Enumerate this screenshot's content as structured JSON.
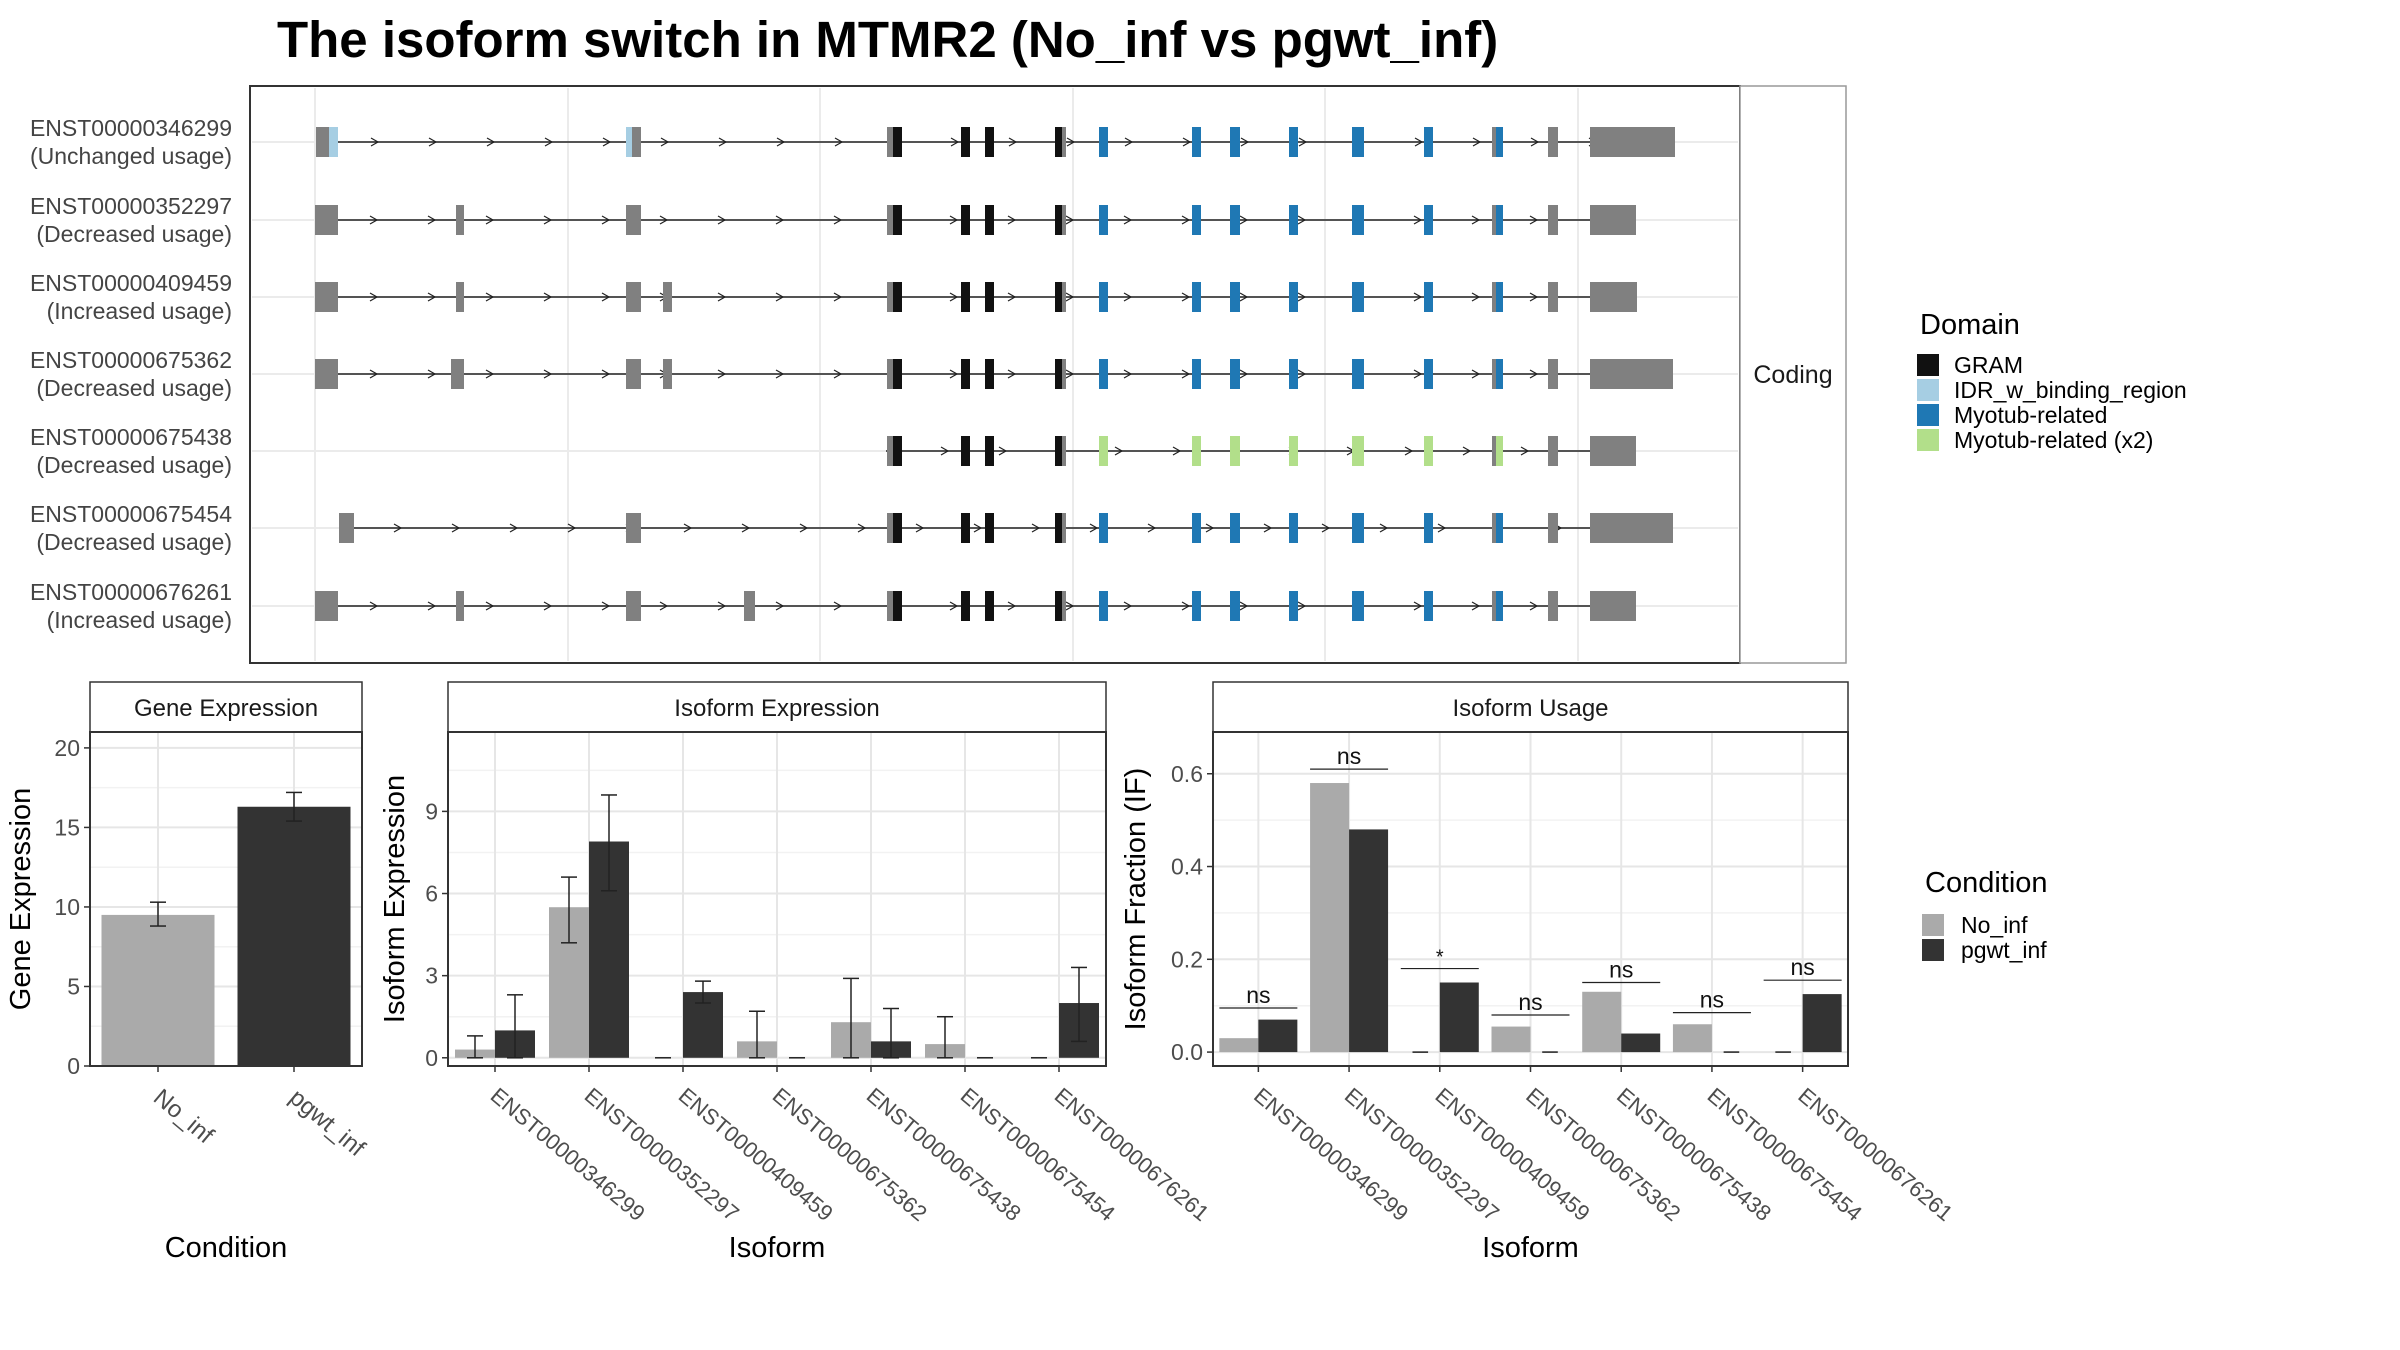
{
  "title": "The isoform switch in MTMR2 (No_inf vs pgwt_inf)",
  "colors": {
    "gram": "#111111",
    "idr": "#a6cee3",
    "myotub": "#1f78b4",
    "myotub_x2": "#b2df8a",
    "noncoding": "#808080",
    "no_inf": "#aaaaaa",
    "pgwt_inf": "#333333"
  },
  "legend_domain": {
    "title": "Domain",
    "items": [
      {
        "label": "GRAM",
        "color": "#111111"
      },
      {
        "label": "IDR_w_binding_region",
        "color": "#a6cee3"
      },
      {
        "label": "Myotub-related",
        "color": "#1f78b4"
      },
      {
        "label": "Myotub-related (x2)",
        "color": "#b2df8a"
      }
    ]
  },
  "legend_condition": {
    "title": "Condition",
    "items": [
      {
        "label": "No_inf",
        "color": "#aaaaaa"
      },
      {
        "label": "pgwt_inf",
        "color": "#333333"
      }
    ]
  },
  "chart_data": [
    {
      "type": "gene-structure",
      "strip_label": "Coding",
      "transcripts": [
        {
          "id": "ENST00000346299",
          "usage": "(Unchanged usage)"
        },
        {
          "id": "ENST00000352297",
          "usage": "(Decreased usage)"
        },
        {
          "id": "ENST00000409459",
          "usage": "(Increased usage)"
        },
        {
          "id": "ENST00000675362",
          "usage": "(Decreased usage)"
        },
        {
          "id": "ENST00000675438",
          "usage": "(Decreased usage)"
        },
        {
          "id": "ENST00000675454",
          "usage": "(Decreased usage)"
        },
        {
          "id": "ENST00000676261",
          "usage": "(Increased usage)"
        }
      ]
    },
    {
      "type": "bar",
      "panel_title": "Gene Expression",
      "xlabel": "Condition",
      "ylabel": "Gene Expression",
      "categories": [
        "No_inf",
        "pgwt_inf"
      ],
      "values": [
        9.5,
        16.3
      ],
      "errors": [
        [
          8.8,
          10.3
        ],
        [
          15.4,
          17.2
        ]
      ],
      "ylim": [
        0,
        21
      ],
      "yticks": [
        "0",
        "5",
        "10",
        "15",
        "20"
      ]
    },
    {
      "type": "bar",
      "panel_title": "Isoform Expression",
      "xlabel": "Isoform",
      "ylabel": "Isoform Expression",
      "categories": [
        "ENST00000346299",
        "ENST00000352297",
        "ENST00000409459",
        "ENST00000675362",
        "ENST00000675438",
        "ENST00000675454",
        "ENST00000676261"
      ],
      "series": [
        {
          "name": "No_inf",
          "values": [
            0.3,
            5.5,
            0.0,
            0.6,
            1.3,
            0.5,
            0.0
          ],
          "errors": [
            [
              0.0,
              0.8
            ],
            [
              4.2,
              6.6
            ],
            null,
            [
              0.0,
              1.7
            ],
            [
              0.0,
              2.9
            ],
            [
              0.0,
              1.5
            ],
            null
          ]
        },
        {
          "name": "pgwt_inf",
          "values": [
            1.0,
            7.9,
            2.4,
            0.0,
            0.6,
            0.0,
            2.0
          ],
          "errors": [
            [
              0.0,
              2.3
            ],
            [
              6.1,
              9.6
            ],
            [
              2.0,
              2.8
            ],
            null,
            [
              0.0,
              1.8
            ],
            null,
            [
              0.6,
              3.3
            ]
          ]
        }
      ],
      "ylim": [
        -0.3,
        11.9
      ],
      "yticks": [
        "0",
        "3",
        "6",
        "9"
      ]
    },
    {
      "type": "bar",
      "panel_title": "Isoform Usage",
      "xlabel": "Isoform",
      "ylabel": "Isoform Fraction (IF)",
      "categories": [
        "ENST00000346299",
        "ENST00000352297",
        "ENST00000409459",
        "ENST00000675362",
        "ENST00000675438",
        "ENST00000675454",
        "ENST00000676261"
      ],
      "series": [
        {
          "name": "No_inf",
          "values": [
            0.03,
            0.58,
            0.0,
            0.055,
            0.13,
            0.06,
            0.0
          ]
        },
        {
          "name": "pgwt_inf",
          "values": [
            0.07,
            0.48,
            0.15,
            0.0,
            0.04,
            0.0,
            0.125
          ]
        }
      ],
      "annotations": [
        "ns",
        "ns",
        "*",
        "ns",
        "ns",
        "ns",
        "ns"
      ],
      "annotation_y": [
        0.095,
        0.61,
        0.18,
        0.08,
        0.15,
        0.085,
        0.155
      ],
      "ylim": [
        -0.03,
        0.69
      ],
      "yticks": [
        "0.0",
        "0.2",
        "0.4",
        "0.6"
      ]
    }
  ]
}
